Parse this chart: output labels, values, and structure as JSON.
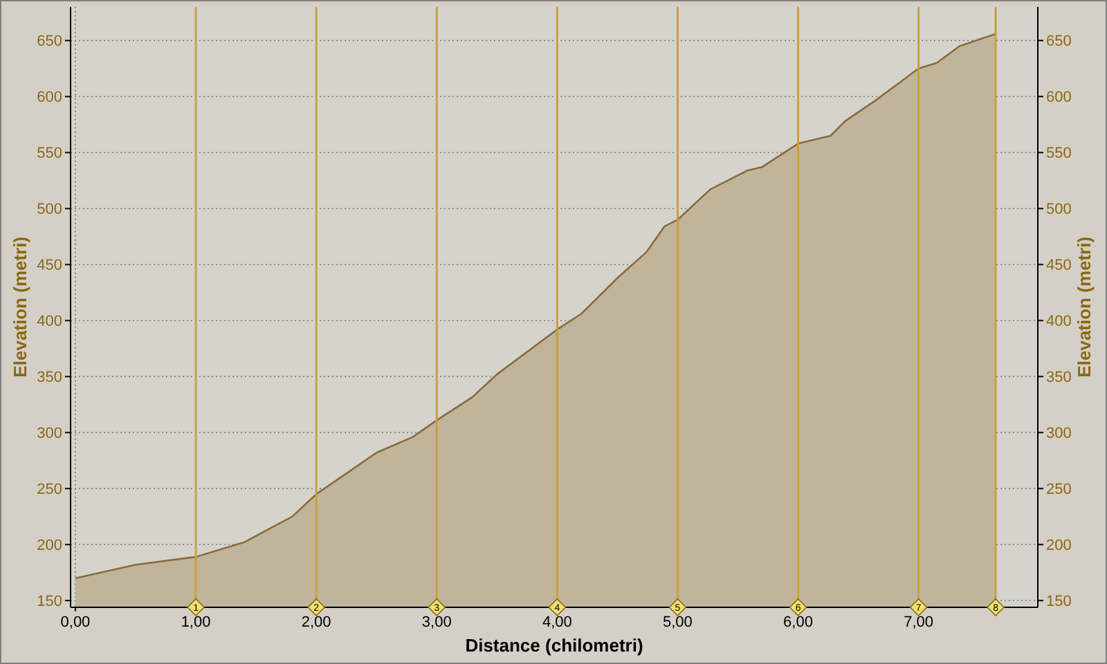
{
  "chart_data": {
    "type": "area",
    "xlabel": "Distance (chilometri)",
    "ylabel": "Elevation (metri)",
    "y2label": "Elevation (metri)",
    "x": [
      0,
      0.5,
      1,
      1.4,
      1.8,
      2,
      2.5,
      2.8,
      3,
      3.3,
      3.5,
      4,
      4.2,
      4.51,
      4.74,
      4.89,
      5,
      5.27,
      5.58,
      5.7,
      6,
      6.27,
      6.39,
      6.65,
      7,
      7.15,
      7.34,
      7.64
    ],
    "series": [
      {
        "color": "#8b6a3c",
        "values": [
          170,
          182,
          189,
          202,
          225,
          245,
          282,
          296,
          311,
          332,
          352,
          392,
          406,
          439,
          461,
          484,
          490,
          517,
          534,
          537,
          558,
          565,
          578,
          597,
          625,
          630,
          645,
          656
        ]
      }
    ],
    "xlim": [
      -0.04,
      7.99
    ],
    "ylim": [
      144,
      680
    ],
    "y2lim": [
      144,
      680
    ],
    "xticks": [
      {
        "value": 0,
        "label": "0,00"
      },
      {
        "value": 1,
        "label": "1,00"
      },
      {
        "value": 2,
        "label": "2,00"
      },
      {
        "value": 3,
        "label": "3,00"
      },
      {
        "value": 4,
        "label": "4,00"
      },
      {
        "value": 5,
        "label": "5,00"
      },
      {
        "value": 6,
        "label": "6,00"
      },
      {
        "value": 7,
        "label": "7,00"
      }
    ],
    "yticks": [
      150,
      200,
      250,
      300,
      350,
      400,
      450,
      500,
      550,
      600,
      650
    ],
    "y2ticks": [
      150,
      200,
      250,
      300,
      350,
      400,
      450,
      500,
      550,
      600,
      650
    ],
    "grid": true,
    "ref_lines": [
      {
        "axis": "x",
        "value": 1,
        "label": "1",
        "color": "#c8a040"
      },
      {
        "axis": "x",
        "value": 2,
        "label": "2",
        "color": "#c8a040"
      },
      {
        "axis": "x",
        "value": 3,
        "label": "3",
        "color": "#c8a040"
      },
      {
        "axis": "x",
        "value": 4,
        "label": "4",
        "color": "#c8a040"
      },
      {
        "axis": "x",
        "value": 5,
        "label": "5",
        "color": "#c8a040"
      },
      {
        "axis": "x",
        "value": 6,
        "label": "6",
        "color": "#c8a040"
      },
      {
        "axis": "x",
        "value": 7,
        "label": "7",
        "color": "#c8a040"
      },
      {
        "axis": "x",
        "value": 7.64,
        "label": "8",
        "color": "#c8a040"
      }
    ]
  }
}
